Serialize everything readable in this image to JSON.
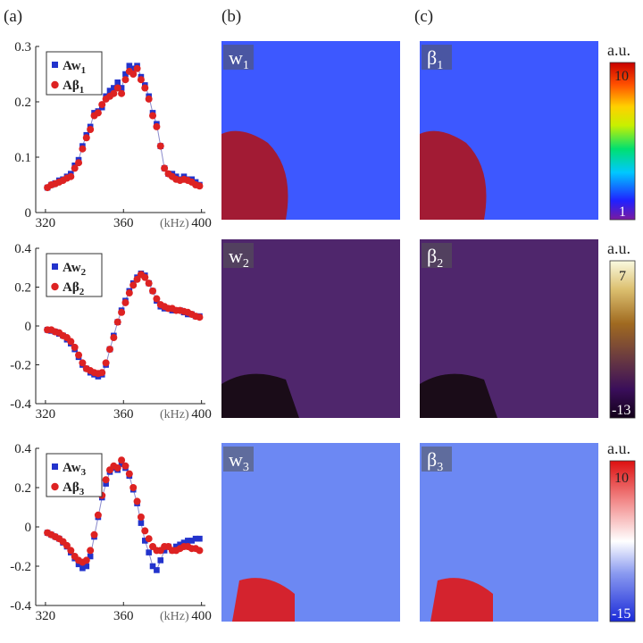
{
  "panel_labels": [
    "(a)",
    "(b)",
    "(c)"
  ],
  "unit_label": "a.u.",
  "x_unit": "(kHz)",
  "colors": {
    "blue_series": "#2233cc",
    "red_series": "#dd2222",
    "line": "#8a8acc"
  },
  "colorbars": [
    {
      "max": "10",
      "min": "1",
      "map": "jet"
    },
    {
      "max": "7",
      "min": "-13",
      "map": "gold"
    },
    {
      "max": "10",
      "min": "-15",
      "map": "bwr"
    }
  ],
  "maps": [
    {
      "left": "w1",
      "right": "β1",
      "colormap": "jet"
    },
    {
      "left": "w2",
      "right": "β2",
      "colormap": "gold"
    },
    {
      "left": "w3",
      "right": "β3",
      "colormap": "bwr"
    }
  ],
  "chart_data": [
    {
      "type": "scatter",
      "xlabel": "(kHz)",
      "xlim": [
        315,
        402
      ],
      "ylim": [
        0,
        0.3
      ],
      "xticks": [
        320,
        360,
        400
      ],
      "yticks": [
        0,
        0.1,
        0.2,
        0.3
      ],
      "ytick_labels": [
        "0",
        "0.1",
        "0.2",
        "0.3"
      ],
      "x": [
        321,
        323,
        325,
        327,
        329,
        331,
        333,
        335,
        337,
        339,
        341,
        343,
        345,
        347,
        349,
        351,
        353,
        355,
        357,
        359,
        361,
        363,
        365,
        367,
        369,
        371,
        373,
        375,
        377,
        379,
        381,
        383,
        385,
        387,
        389,
        391,
        393,
        395,
        397,
        399
      ],
      "series": [
        {
          "name": "Aw1",
          "marker": "square",
          "values": [
            0.045,
            0.05,
            0.053,
            0.058,
            0.06,
            0.065,
            0.07,
            0.085,
            0.095,
            0.12,
            0.14,
            0.155,
            0.18,
            0.183,
            0.19,
            0.21,
            0.22,
            0.225,
            0.235,
            0.225,
            0.25,
            0.265,
            0.26,
            0.265,
            0.245,
            0.23,
            0.21,
            0.18,
            0.16,
            0.12,
            0.08,
            0.07,
            0.07,
            0.065,
            0.06,
            0.065,
            0.06,
            0.06,
            0.055,
            0.05
          ]
        },
        {
          "name": "Aβ1",
          "marker": "circle",
          "values": [
            0.045,
            0.05,
            0.052,
            0.055,
            0.058,
            0.062,
            0.065,
            0.08,
            0.09,
            0.115,
            0.135,
            0.15,
            0.175,
            0.18,
            0.195,
            0.205,
            0.21,
            0.215,
            0.225,
            0.215,
            0.24,
            0.255,
            0.25,
            0.26,
            0.24,
            0.225,
            0.205,
            0.175,
            0.155,
            0.12,
            0.08,
            0.07,
            0.065,
            0.06,
            0.058,
            0.06,
            0.058,
            0.055,
            0.05,
            0.048
          ]
        }
      ]
    },
    {
      "type": "scatter",
      "xlabel": "(kHz)",
      "xlim": [
        315,
        402
      ],
      "ylim": [
        -0.4,
        0.4
      ],
      "xticks": [
        320,
        360,
        400
      ],
      "yticks": [
        -0.4,
        -0.2,
        0,
        0.2,
        0.4
      ],
      "ytick_labels": [
        "-0.4",
        "-0.2",
        "0",
        "0.2",
        "0.4"
      ],
      "x": [
        321,
        323,
        325,
        327,
        329,
        331,
        333,
        335,
        337,
        339,
        341,
        343,
        345,
        347,
        349,
        351,
        353,
        355,
        357,
        359,
        361,
        363,
        365,
        367,
        369,
        371,
        373,
        375,
        377,
        379,
        381,
        383,
        385,
        387,
        389,
        391,
        393,
        395,
        397,
        399
      ],
      "series": [
        {
          "name": "Aw2",
          "marker": "square",
          "values": [
            -0.02,
            -0.025,
            -0.03,
            -0.04,
            -0.05,
            -0.07,
            -0.09,
            -0.12,
            -0.16,
            -0.2,
            -0.22,
            -0.24,
            -0.25,
            -0.26,
            -0.25,
            -0.2,
            -0.12,
            -0.05,
            0.02,
            0.08,
            0.13,
            0.18,
            0.22,
            0.25,
            0.27,
            0.26,
            0.22,
            0.18,
            0.13,
            0.1,
            0.09,
            0.09,
            0.08,
            0.08,
            0.08,
            0.07,
            0.06,
            0.06,
            0.05,
            0.05
          ]
        },
        {
          "name": "Aβ2",
          "marker": "circle",
          "values": [
            -0.02,
            -0.02,
            -0.03,
            -0.035,
            -0.05,
            -0.06,
            -0.08,
            -0.11,
            -0.15,
            -0.19,
            -0.22,
            -0.23,
            -0.24,
            -0.245,
            -0.24,
            -0.19,
            -0.12,
            -0.06,
            0.02,
            0.07,
            0.12,
            0.17,
            0.21,
            0.24,
            0.265,
            0.25,
            0.22,
            0.18,
            0.14,
            0.11,
            0.1,
            0.09,
            0.09,
            0.08,
            0.08,
            0.075,
            0.07,
            0.06,
            0.05,
            0.045
          ]
        }
      ]
    },
    {
      "type": "scatter",
      "xlabel": "(kHz)",
      "xlim": [
        315,
        402
      ],
      "ylim": [
        -0.4,
        0.4
      ],
      "xticks": [
        320,
        360,
        400
      ],
      "yticks": [
        -0.4,
        -0.2,
        0,
        0.2,
        0.4
      ],
      "ytick_labels": [
        "-0.4",
        "-0.2",
        "0",
        "0.2",
        "0.4"
      ],
      "x": [
        321,
        323,
        325,
        327,
        329,
        331,
        333,
        335,
        337,
        339,
        341,
        343,
        345,
        347,
        349,
        351,
        353,
        355,
        357,
        359,
        361,
        363,
        365,
        367,
        369,
        371,
        373,
        375,
        377,
        379,
        381,
        383,
        385,
        387,
        389,
        391,
        393,
        395,
        397,
        399
      ],
      "series": [
        {
          "name": "Aw3",
          "marker": "square",
          "values": [
            -0.03,
            -0.04,
            -0.05,
            -0.06,
            -0.08,
            -0.1,
            -0.13,
            -0.16,
            -0.19,
            -0.21,
            -0.2,
            -0.15,
            -0.05,
            0.05,
            0.15,
            0.22,
            0.28,
            0.3,
            0.29,
            0.32,
            0.3,
            0.26,
            0.19,
            0.12,
            0.02,
            -0.07,
            -0.13,
            -0.2,
            -0.22,
            -0.17,
            -0.12,
            -0.1,
            -0.12,
            -0.1,
            -0.09,
            -0.08,
            -0.07,
            -0.07,
            -0.06,
            -0.06
          ]
        },
        {
          "name": "Aβ3",
          "marker": "circle",
          "values": [
            -0.03,
            -0.04,
            -0.05,
            -0.06,
            -0.075,
            -0.095,
            -0.12,
            -0.15,
            -0.17,
            -0.18,
            -0.17,
            -0.12,
            -0.04,
            0.06,
            0.16,
            0.24,
            0.29,
            0.31,
            0.3,
            0.34,
            0.31,
            0.27,
            0.2,
            0.13,
            0.05,
            -0.02,
            -0.06,
            -0.1,
            -0.12,
            -0.12,
            -0.1,
            -0.1,
            -0.12,
            -0.12,
            -0.11,
            -0.1,
            -0.1,
            -0.11,
            -0.11,
            -0.12
          ]
        }
      ]
    }
  ]
}
